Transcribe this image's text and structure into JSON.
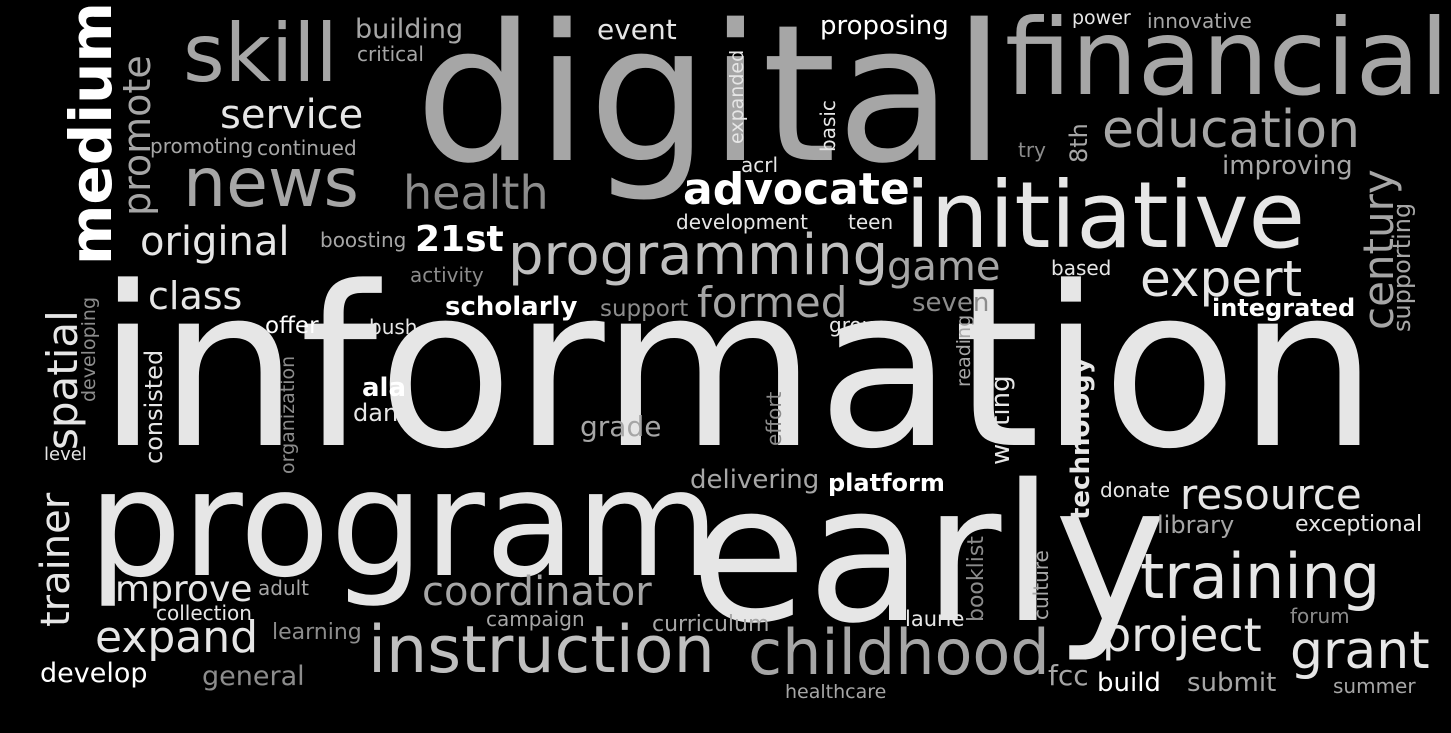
{
  "cloud": {
    "palette": {
      "background": "#000000",
      "white": "#ffffff",
      "light": "#e6e6e6",
      "mid": "#bfbfbf",
      "gray": "#a6a6a6",
      "dim": "#8c8c8c"
    },
    "words": [
      {
        "id": "information",
        "text": "information",
        "tone": "light"
      },
      {
        "id": "digital",
        "text": "digital",
        "tone": "gray"
      },
      {
        "id": "program",
        "text": "program",
        "tone": "light"
      },
      {
        "id": "early",
        "text": "early",
        "tone": "light"
      },
      {
        "id": "financial",
        "text": "financial",
        "tone": "gray"
      },
      {
        "id": "initiative",
        "text": "initiative",
        "tone": "light"
      },
      {
        "id": "instruction",
        "text": "instruction",
        "tone": "mid"
      },
      {
        "id": "childhood",
        "text": "childhood",
        "tone": "gray"
      },
      {
        "id": "education",
        "text": "education",
        "tone": "gray"
      },
      {
        "id": "programming",
        "text": "programming",
        "tone": "mid"
      },
      {
        "id": "news",
        "text": "news",
        "tone": "gray"
      },
      {
        "id": "skill",
        "text": "skill",
        "tone": "gray"
      },
      {
        "id": "training",
        "text": "training",
        "tone": "light"
      },
      {
        "id": "medium",
        "text": "medium",
        "tone": "white"
      },
      {
        "id": "expert",
        "text": "expert",
        "tone": "light"
      },
      {
        "id": "project",
        "text": "project",
        "tone": "light"
      },
      {
        "id": "grant",
        "text": "grant",
        "tone": "light"
      },
      {
        "id": "resource",
        "text": "resource",
        "tone": "light"
      },
      {
        "id": "advocate",
        "text": "advocate",
        "tone": "white"
      },
      {
        "id": "health",
        "text": "health",
        "tone": "dim"
      },
      {
        "id": "original",
        "text": "original",
        "tone": "light"
      },
      {
        "id": "coordinator",
        "text": "coordinator",
        "tone": "gray"
      },
      {
        "id": "formed",
        "text": "formed",
        "tone": "gray"
      },
      {
        "id": "game",
        "text": "game",
        "tone": "gray"
      },
      {
        "id": "expand",
        "text": "expand",
        "tone": "light"
      },
      {
        "id": "class",
        "text": "class",
        "tone": "light"
      },
      {
        "id": "service",
        "text": "service",
        "tone": "light"
      },
      {
        "id": "trainer",
        "text": "trainer",
        "tone": "light"
      },
      {
        "id": "spatial",
        "text": "spatial",
        "tone": "light"
      },
      {
        "id": "century",
        "text": "century",
        "tone": "gray"
      },
      {
        "id": "promote",
        "text": "promote",
        "tone": "gray"
      },
      {
        "id": "improve",
        "text": "improve",
        "tone": "light"
      },
      {
        "id": "21st",
        "text": "21st",
        "tone": "white"
      },
      {
        "id": "scholarly",
        "text": "scholarly",
        "tone": "white"
      },
      {
        "id": "integrated",
        "text": "integrated",
        "tone": "white"
      },
      {
        "id": "technology",
        "text": "technology",
        "tone": "light"
      },
      {
        "id": "delivering",
        "text": "delivering",
        "tone": "gray"
      },
      {
        "id": "platform",
        "text": "platform",
        "tone": "white"
      },
      {
        "id": "improving",
        "text": "improving",
        "tone": "gray"
      },
      {
        "id": "supporting",
        "text": "supporting",
        "tone": "gray"
      },
      {
        "id": "develop",
        "text": "develop",
        "tone": "white"
      },
      {
        "id": "general",
        "text": "general",
        "tone": "dim"
      },
      {
        "id": "building",
        "text": "building",
        "tone": "gray"
      },
      {
        "id": "proposing",
        "text": "proposing",
        "tone": "white"
      },
      {
        "id": "event",
        "text": "event",
        "tone": "light"
      },
      {
        "id": "seven",
        "text": "seven",
        "tone": "dim"
      },
      {
        "id": "consisted",
        "text": "consisted",
        "tone": "light"
      },
      {
        "id": "writing",
        "text": "writing",
        "tone": "light"
      },
      {
        "id": "grade",
        "text": "grade",
        "tone": "gray"
      },
      {
        "id": "library",
        "text": "library",
        "tone": "gray"
      },
      {
        "id": "exceptional",
        "text": "exceptional",
        "tone": "light"
      },
      {
        "id": "submit",
        "text": "submit",
        "tone": "gray"
      },
      {
        "id": "build",
        "text": "build",
        "tone": "white"
      },
      {
        "id": "fcc",
        "text": "fcc",
        "tone": "gray"
      },
      {
        "id": "summer",
        "text": "summer",
        "tone": "gray"
      },
      {
        "id": "healthcare",
        "text": "healthcare",
        "tone": "gray"
      },
      {
        "id": "curriculum",
        "text": "curriculum",
        "tone": "gray"
      },
      {
        "id": "campaign",
        "text": "campaign",
        "tone": "gray"
      },
      {
        "id": "laurie",
        "text": "laurie",
        "tone": "light"
      },
      {
        "id": "booklist",
        "text": "booklist",
        "tone": "dim"
      },
      {
        "id": "culture",
        "text": "culture",
        "tone": "gray"
      },
      {
        "id": "learning",
        "text": "learning",
        "tone": "dim"
      },
      {
        "id": "collection",
        "text": "collection",
        "tone": "light"
      },
      {
        "id": "adult",
        "text": "adult",
        "tone": "gray"
      },
      {
        "id": "forum",
        "text": "forum",
        "tone": "dim"
      },
      {
        "id": "donate",
        "text": "donate",
        "tone": "light"
      },
      {
        "id": "ala",
        "text": "ala",
        "tone": "white"
      },
      {
        "id": "dana",
        "text": "dana",
        "tone": "light"
      },
      {
        "id": "organization",
        "text": "organization",
        "tone": "dim"
      },
      {
        "id": "effort",
        "text": "effort",
        "tone": "dim"
      },
      {
        "id": "reading",
        "text": "reading",
        "tone": "gray"
      },
      {
        "id": "offer",
        "text": "offer",
        "tone": "white"
      },
      {
        "id": "bush",
        "text": "bush",
        "tone": "light"
      },
      {
        "id": "support",
        "text": "support",
        "tone": "dim"
      },
      {
        "id": "group",
        "text": "group",
        "tone": "light"
      },
      {
        "id": "based",
        "text": "based",
        "tone": "light"
      },
      {
        "id": "activity",
        "text": "activity",
        "tone": "dim"
      },
      {
        "id": "boosting",
        "text": "boosting",
        "tone": "gray"
      },
      {
        "id": "development",
        "text": "development",
        "tone": "light"
      },
      {
        "id": "teen",
        "text": "teen",
        "tone": "light"
      },
      {
        "id": "acrl",
        "text": "acrl",
        "tone": "light"
      },
      {
        "id": "basic",
        "text": "basic",
        "tone": "light"
      },
      {
        "id": "expanded",
        "text": "expanded",
        "tone": "light"
      },
      {
        "id": "try",
        "text": "try",
        "tone": "dim"
      },
      {
        "id": "8th",
        "text": "8th",
        "tone": "gray"
      },
      {
        "id": "power",
        "text": "power",
        "tone": "light"
      },
      {
        "id": "innovative",
        "text": "innovative",
        "tone": "gray"
      },
      {
        "id": "critical",
        "text": "critical",
        "tone": "gray"
      },
      {
        "id": "promoting",
        "text": "promoting",
        "tone": "gray"
      },
      {
        "id": "continued",
        "text": "continued",
        "tone": "gray"
      },
      {
        "id": "developing",
        "text": "developing",
        "tone": "dim"
      },
      {
        "id": "level",
        "text": "level",
        "tone": "light"
      }
    ]
  }
}
